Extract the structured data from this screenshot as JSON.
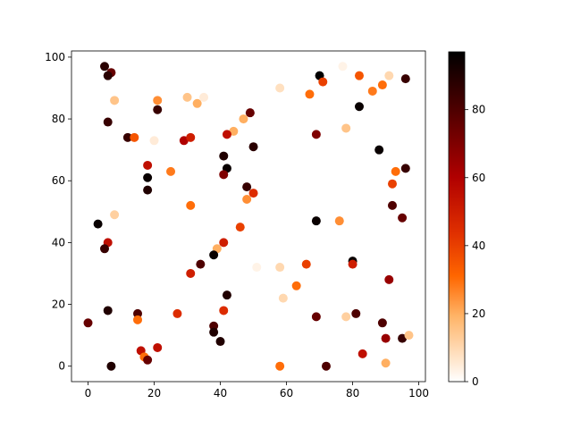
{
  "chart_data": {
    "type": "scatter",
    "title": "",
    "xlabel": "",
    "ylabel": "",
    "xlim": [
      -5,
      102
    ],
    "ylim": [
      -5,
      102
    ],
    "xticks": [
      0,
      20,
      40,
      60,
      80,
      100
    ],
    "yticks": [
      0,
      20,
      40,
      60,
      80,
      100
    ],
    "colormap": "gist_heat_r",
    "color_range": [
      0,
      97
    ],
    "colorbar_ticks": [
      0,
      20,
      40,
      60,
      80
    ],
    "points": [
      {
        "x": 5,
        "y": 97,
        "c": 88
      },
      {
        "x": 7,
        "y": 95,
        "c": 75
      },
      {
        "x": 6,
        "y": 94,
        "c": 88
      },
      {
        "x": 8,
        "y": 86,
        "c": 15
      },
      {
        "x": 6,
        "y": 79,
        "c": 85
      },
      {
        "x": 12,
        "y": 74,
        "c": 85
      },
      {
        "x": 14,
        "y": 74,
        "c": 35
      },
      {
        "x": 20,
        "y": 73,
        "c": 5
      },
      {
        "x": 21,
        "y": 86,
        "c": 25
      },
      {
        "x": 21,
        "y": 83,
        "c": 85
      },
      {
        "x": 18,
        "y": 65,
        "c": 55
      },
      {
        "x": 18,
        "y": 61,
        "c": 95
      },
      {
        "x": 18,
        "y": 57,
        "c": 90
      },
      {
        "x": 25,
        "y": 63,
        "c": 28
      },
      {
        "x": 30,
        "y": 87,
        "c": 15
      },
      {
        "x": 33,
        "y": 85,
        "c": 20
      },
      {
        "x": 35,
        "y": 87,
        "c": 5
      },
      {
        "x": 29,
        "y": 73,
        "c": 60
      },
      {
        "x": 31,
        "y": 74,
        "c": 50
      },
      {
        "x": 31,
        "y": 52,
        "c": 30
      },
      {
        "x": 3,
        "y": 46,
        "c": 95
      },
      {
        "x": 8,
        "y": 49,
        "c": 12
      },
      {
        "x": 6,
        "y": 40,
        "c": 55
      },
      {
        "x": 5,
        "y": 38,
        "c": 85
      },
      {
        "x": 44,
        "y": 76,
        "c": 20
      },
      {
        "x": 42,
        "y": 75,
        "c": 55
      },
      {
        "x": 47,
        "y": 80,
        "c": 20
      },
      {
        "x": 49,
        "y": 82,
        "c": 75
      },
      {
        "x": 50,
        "y": 71,
        "c": 88
      },
      {
        "x": 41,
        "y": 68,
        "c": 90
      },
      {
        "x": 42,
        "y": 64,
        "c": 95
      },
      {
        "x": 41,
        "y": 62,
        "c": 70
      },
      {
        "x": 48,
        "y": 58,
        "c": 85
      },
      {
        "x": 50,
        "y": 56,
        "c": 45
      },
      {
        "x": 48,
        "y": 54,
        "c": 25
      },
      {
        "x": 46,
        "y": 45,
        "c": 40
      },
      {
        "x": 41,
        "y": 40,
        "c": 50
      },
      {
        "x": 39,
        "y": 38,
        "c": 20
      },
      {
        "x": 38,
        "y": 36,
        "c": 95
      },
      {
        "x": 34,
        "y": 33,
        "c": 80
      },
      {
        "x": 31,
        "y": 30,
        "c": 50
      },
      {
        "x": 42,
        "y": 23,
        "c": 90
      },
      {
        "x": 41,
        "y": 18,
        "c": 45
      },
      {
        "x": 27,
        "y": 17,
        "c": 45
      },
      {
        "x": 38,
        "y": 13,
        "c": 80
      },
      {
        "x": 38,
        "y": 11,
        "c": 90
      },
      {
        "x": 40,
        "y": 8,
        "c": 90
      },
      {
        "x": 21,
        "y": 6,
        "c": 55
      },
      {
        "x": 16,
        "y": 5,
        "c": 55
      },
      {
        "x": 17,
        "y": 3,
        "c": 30
      },
      {
        "x": 18,
        "y": 2,
        "c": 75
      },
      {
        "x": 15,
        "y": 17,
        "c": 80
      },
      {
        "x": 15,
        "y": 15,
        "c": 30
      },
      {
        "x": 6,
        "y": 18,
        "c": 90
      },
      {
        "x": 0,
        "y": 14,
        "c": 75
      },
      {
        "x": 7,
        "y": 0,
        "c": 90
      },
      {
        "x": 58,
        "y": 90,
        "c": 8
      },
      {
        "x": 67,
        "y": 88,
        "c": 30
      },
      {
        "x": 70,
        "y": 94,
        "c": 97
      },
      {
        "x": 71,
        "y": 92,
        "c": 40
      },
      {
        "x": 77,
        "y": 97,
        "c": 3
      },
      {
        "x": 82,
        "y": 94,
        "c": 35
      },
      {
        "x": 86,
        "y": 89,
        "c": 28
      },
      {
        "x": 89,
        "y": 91,
        "c": 30
      },
      {
        "x": 91,
        "y": 94,
        "c": 10
      },
      {
        "x": 96,
        "y": 93,
        "c": 85
      },
      {
        "x": 82,
        "y": 84,
        "c": 95
      },
      {
        "x": 78,
        "y": 77,
        "c": 15
      },
      {
        "x": 69,
        "y": 75,
        "c": 70
      },
      {
        "x": 88,
        "y": 70,
        "c": 95
      },
      {
        "x": 93,
        "y": 63,
        "c": 30
      },
      {
        "x": 96,
        "y": 64,
        "c": 85
      },
      {
        "x": 92,
        "y": 59,
        "c": 40
      },
      {
        "x": 92,
        "y": 52,
        "c": 80
      },
      {
        "x": 95,
        "y": 48,
        "c": 75
      },
      {
        "x": 69,
        "y": 47,
        "c": 95
      },
      {
        "x": 76,
        "y": 47,
        "c": 25
      },
      {
        "x": 80,
        "y": 34,
        "c": 95
      },
      {
        "x": 80,
        "y": 33,
        "c": 50
      },
      {
        "x": 91,
        "y": 28,
        "c": 65
      },
      {
        "x": 66,
        "y": 33,
        "c": 40
      },
      {
        "x": 63,
        "y": 26,
        "c": 30
      },
      {
        "x": 58,
        "y": 32,
        "c": 10
      },
      {
        "x": 51,
        "y": 32,
        "c": 3
      },
      {
        "x": 59,
        "y": 22,
        "c": 10
      },
      {
        "x": 69,
        "y": 16,
        "c": 75
      },
      {
        "x": 78,
        "y": 16,
        "c": 12
      },
      {
        "x": 81,
        "y": 17,
        "c": 80
      },
      {
        "x": 89,
        "y": 14,
        "c": 80
      },
      {
        "x": 90,
        "y": 9,
        "c": 65
      },
      {
        "x": 95,
        "y": 9,
        "c": 85
      },
      {
        "x": 97,
        "y": 10,
        "c": 15
      },
      {
        "x": 83,
        "y": 4,
        "c": 55
      },
      {
        "x": 90,
        "y": 1,
        "c": 20
      },
      {
        "x": 72,
        "y": 0,
        "c": 80
      },
      {
        "x": 58,
        "y": 0,
        "c": 30
      }
    ]
  }
}
